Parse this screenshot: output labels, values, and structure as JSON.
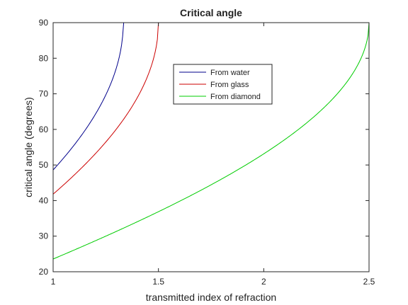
{
  "chart_data": {
    "type": "line",
    "title": "Critical angle",
    "xlabel": "transmitted index of refraction",
    "ylabel": "critical angle (degrees)",
    "xlim": [
      1,
      2.5
    ],
    "ylim": [
      20,
      90
    ],
    "x_ticks": [
      "1",
      "1.5",
      "2",
      "2.5"
    ],
    "y_ticks": [
      "20",
      "30",
      "40",
      "50",
      "60",
      "70",
      "80",
      "90"
    ],
    "grid": false,
    "legend_position": "upper-center",
    "series": [
      {
        "name": "From water",
        "color": "#00008B",
        "source_index": 1.333,
        "x": [
          1.0,
          1.05,
          1.1,
          1.15,
          1.2,
          1.25,
          1.3,
          1.32,
          1.333,
          1.5,
          2.0,
          2.5
        ],
        "y": [
          48.6,
          52.0,
          55.6,
          59.6,
          64.2,
          69.7,
          77.2,
          82.0,
          90,
          90,
          90,
          90
        ]
      },
      {
        "name": "From glass",
        "color": "#CC0000",
        "source_index": 1.5,
        "x": [
          1.0,
          1.1,
          1.2,
          1.3,
          1.35,
          1.4,
          1.45,
          1.48,
          1.5,
          2.0,
          2.5
        ],
        "y": [
          41.8,
          47.2,
          53.1,
          60.1,
          64.2,
          69.0,
          75.2,
          80.6,
          90,
          90,
          90
        ]
      },
      {
        "name": "From diamond",
        "color": "#00CC00",
        "source_index": 2.5,
        "x": [
          1.0,
          1.2,
          1.4,
          1.6,
          1.8,
          2.0,
          2.2,
          2.3,
          2.4,
          2.45,
          2.5
        ],
        "y": [
          23.6,
          28.7,
          34.1,
          39.8,
          46.1,
          53.1,
          61.6,
          66.9,
          73.7,
          78.5,
          90
        ]
      }
    ]
  }
}
